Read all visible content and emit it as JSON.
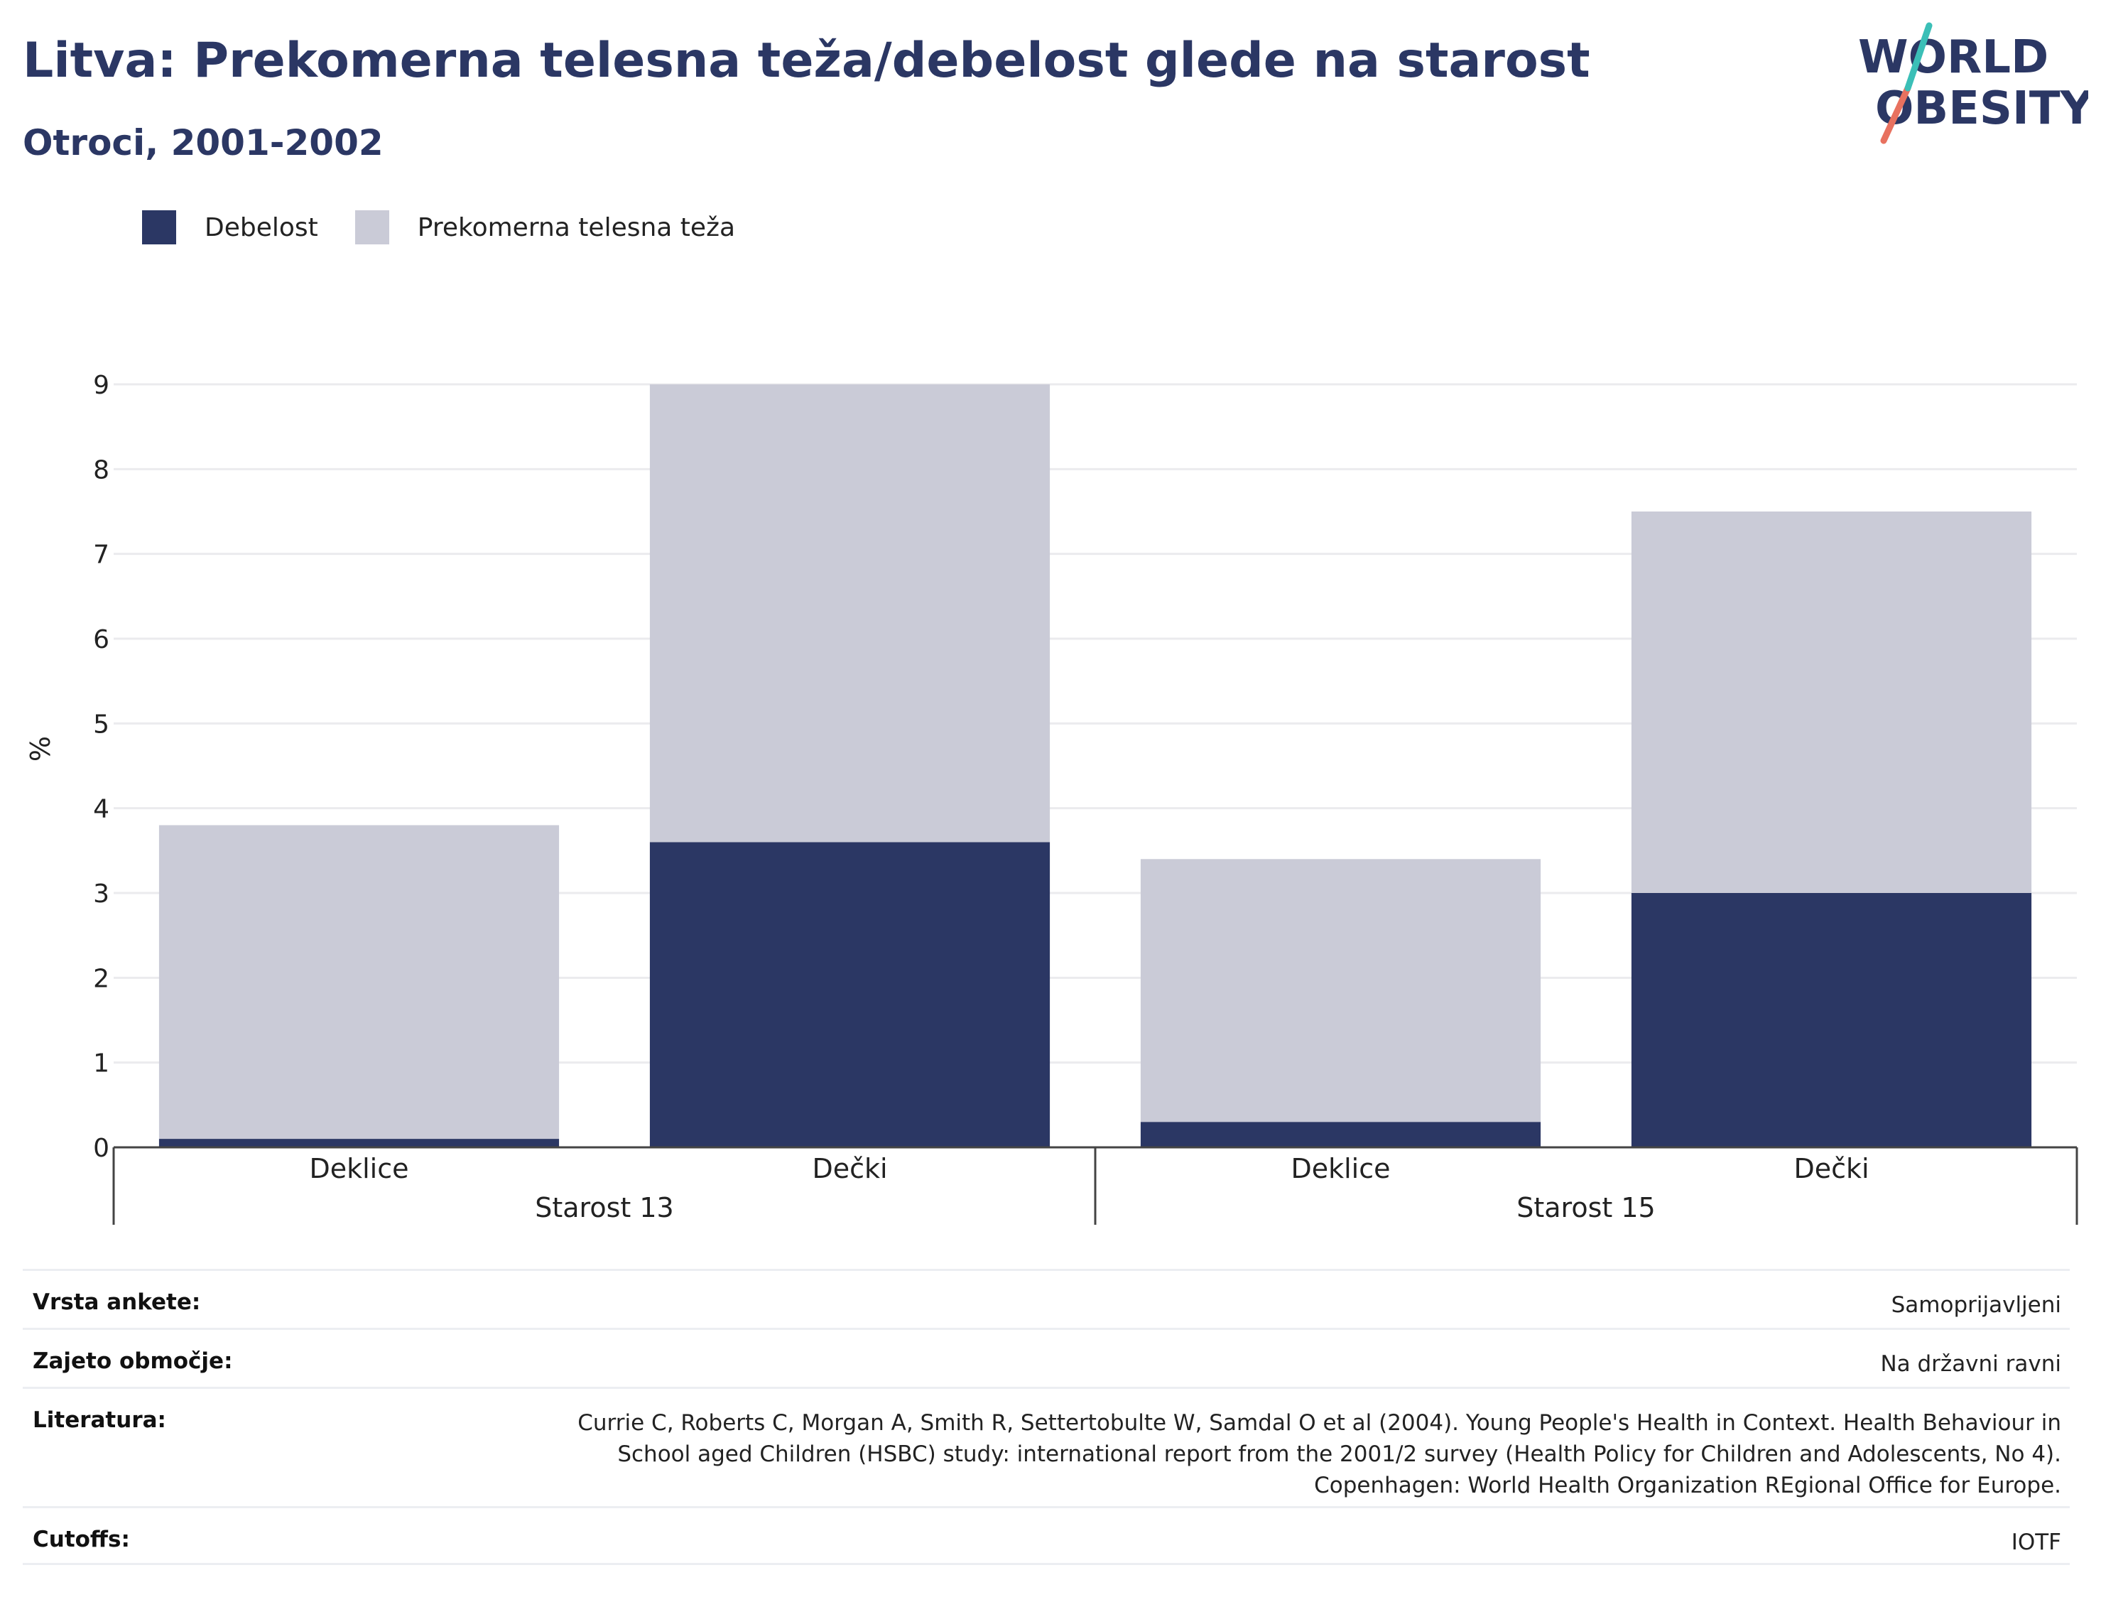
{
  "header": {
    "title": "Litva: Prekomerna telesna teža/debelost glede na starost",
    "subtitle": "Otroci, 2001-2002",
    "logo_line1": "WORLD",
    "logo_line2": "OBESITY"
  },
  "legend": [
    {
      "label": "Debelost",
      "color": "#2b3764"
    },
    {
      "label": "Prekomerna telesna teža",
      "color": "#cacbd7"
    }
  ],
  "chart_data": {
    "type": "bar",
    "stacked": true,
    "ylabel": "%",
    "ylim": [
      0,
      9
    ],
    "yticks": [
      0,
      1,
      2,
      3,
      4,
      5,
      6,
      7,
      8,
      9
    ],
    "grid": true,
    "legend_position": "top-left",
    "groups": [
      {
        "label": "Starost 13",
        "categories": [
          "Deklice",
          "Dečki"
        ]
      },
      {
        "label": "Starost 15",
        "categories": [
          "Deklice",
          "Dečki"
        ]
      }
    ],
    "categories": [
      "Deklice",
      "Dečki",
      "Deklice",
      "Dečki"
    ],
    "series": [
      {
        "name": "Debelost",
        "color": "#2b3764",
        "values": [
          0.1,
          3.6,
          0.3,
          3.0
        ]
      },
      {
        "name": "Prekomerna telesna teža",
        "color": "#cacbd7",
        "values": [
          3.7,
          5.4,
          3.1,
          4.5
        ]
      }
    ]
  },
  "meta": [
    {
      "label": "Vrsta ankete:",
      "lines": [
        "Samoprijavljeni"
      ]
    },
    {
      "label": "Zajeto območje:",
      "lines": [
        "Na državni ravni"
      ]
    },
    {
      "label": "Literatura:",
      "lines": [
        "Currie C, Roberts C, Morgan A, Smith R, Settertobulte W, Samdal O et al (2004). Young People's Health in Context. Health Behaviour in",
        "School aged Children (HSBC) study: international report from the 2001/2 survey (Health Policy for Children and Adolescents, No 4).",
        "Copenhagen: World Health Organization REgional Office for Europe."
      ]
    },
    {
      "label": "Cutoffs:",
      "lines": [
        "IOTF"
      ]
    }
  ]
}
